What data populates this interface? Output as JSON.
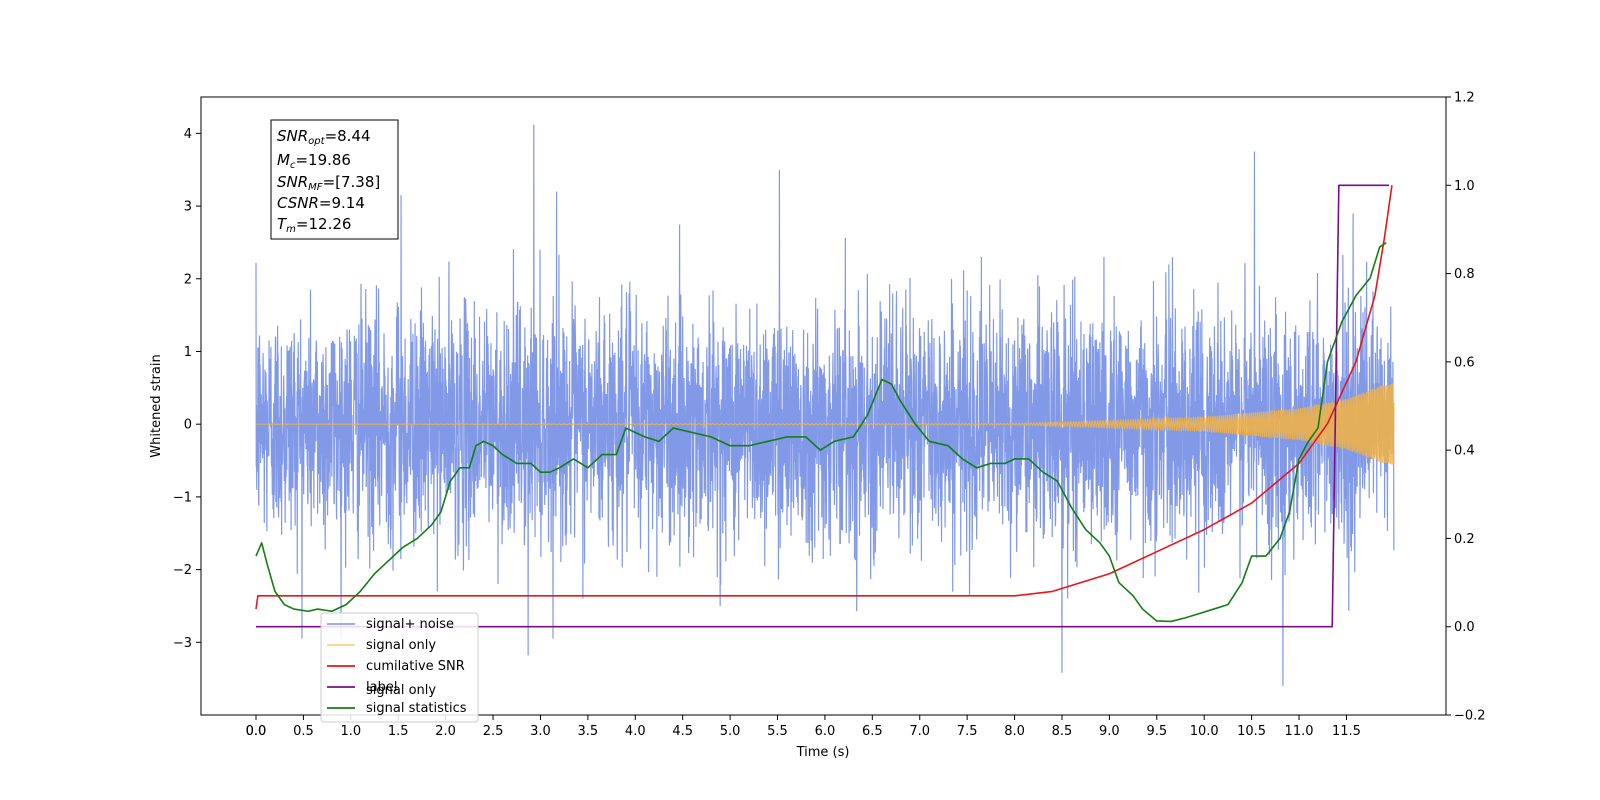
{
  "chart_data": {
    "type": "line",
    "xlabel": "Time (s)",
    "ylabel": "Whitened strain",
    "xlim": [
      -0.58,
      12.55
    ],
    "ylim_left": [
      -4.0,
      4.5
    ],
    "ylim_right": [
      -0.2,
      1.2
    ],
    "x_ticks": [
      "0.0",
      "0.0",
      "0.5",
      "1.0",
      "1.5",
      "2.0",
      "2.5",
      "3.0",
      "3.5",
      "4.0",
      "4.5",
      "5.0",
      "5.5",
      "6.0",
      "6.5",
      "7.0",
      "7.5",
      "8.0",
      "8.5",
      "9.0",
      "9.5",
      "10.0",
      "10.5",
      "11.0",
      "11.5"
    ],
    "x_tick_values": [
      0.0,
      0.0,
      0.5,
      1.0,
      1.5,
      2.0,
      2.5,
      3.0,
      3.5,
      4.0,
      4.5,
      5.0,
      5.5,
      6.0,
      6.5,
      7.0,
      7.5,
      8.0,
      8.5,
      9.0,
      9.5,
      10.0,
      10.5,
      11.0,
      11.5
    ],
    "y_ticks_left": [
      "4",
      "3",
      "2",
      "1",
      "0",
      "−1",
      "−2",
      "−3"
    ],
    "y_tick_values_left": [
      4,
      3,
      2,
      1,
      0,
      -1,
      -2,
      -3
    ],
    "y_ticks_right": [
      "1.2",
      "1.0",
      "0.8",
      "0.6",
      "0.4",
      "0.2",
      "0.0",
      "−0.2"
    ],
    "y_tick_values_right": [
      1.2,
      1.0,
      0.8,
      0.6,
      0.4,
      0.2,
      0.0,
      -0.2
    ],
    "grid": false,
    "legend_position": "lower-left",
    "annotation": [
      {
        "base": "SNR",
        "sub": "opt",
        "rest": "=8.44"
      },
      {
        "base": "M",
        "sub": "c",
        "rest": "=19.86"
      },
      {
        "base": "SNR",
        "sub": "MF",
        "rest": "=[7.38]"
      },
      {
        "base": "CSNR",
        "sub": "",
        "rest": "=9.14"
      },
      {
        "base": "T",
        "sub": "m",
        "rest": "=12.26"
      }
    ],
    "series": [
      {
        "name": "signal+ noise",
        "axis": "left",
        "color": "#7a93e6",
        "x_range": [
          0.0,
          12.0
        ],
        "noise_sigma": 0.8,
        "spikes": [
          [
            2.93,
            4.12
          ],
          [
            3.17,
            3.2
          ],
          [
            10.53,
            3.75
          ],
          [
            5.52,
            3.5
          ],
          [
            1.53,
            3.15
          ],
          [
            8.5,
            -3.42
          ],
          [
            10.83,
            -3.6
          ],
          [
            2.87,
            -3.18
          ],
          [
            11.4,
            1.0
          ]
        ]
      },
      {
        "name": "signal only",
        "axis": "left",
        "color": "#f5b342",
        "envelope": [
          [
            0.0,
            0.0
          ],
          [
            8.0,
            0.01
          ],
          [
            9.0,
            0.05
          ],
          [
            10.0,
            0.1
          ],
          [
            11.0,
            0.22
          ],
          [
            11.5,
            0.35
          ],
          [
            12.0,
            0.6
          ]
        ]
      },
      {
        "name": "cumilative SNR",
        "axis": "right",
        "color": "#e8161a",
        "points": [
          [
            0.0,
            0.04
          ],
          [
            0.02,
            0.07
          ],
          [
            8.0,
            0.07
          ],
          [
            8.4,
            0.08
          ],
          [
            9.0,
            0.12
          ],
          [
            9.5,
            0.17
          ],
          [
            10.0,
            0.22
          ],
          [
            10.5,
            0.28
          ],
          [
            11.0,
            0.37
          ],
          [
            11.3,
            0.46
          ],
          [
            11.6,
            0.6
          ],
          [
            11.8,
            0.75
          ],
          [
            11.9,
            0.88
          ],
          [
            11.98,
            1.0
          ]
        ]
      },
      {
        "name": "label",
        "axis": "right",
        "color": "#7a0e87",
        "points": [
          [
            0.0,
            0.0
          ],
          [
            11.35,
            0.0
          ],
          [
            11.42,
            1.0
          ],
          [
            11.95,
            1.0
          ]
        ]
      },
      {
        "name": "signal statistics",
        "axis": "right",
        "color": "#147d14",
        "points": [
          [
            0.0,
            0.16
          ],
          [
            0.06,
            0.19
          ],
          [
            0.12,
            0.14
          ],
          [
            0.2,
            0.08
          ],
          [
            0.3,
            0.05
          ],
          [
            0.4,
            0.04
          ],
          [
            0.55,
            0.035
          ],
          [
            0.65,
            0.04
          ],
          [
            0.8,
            0.035
          ],
          [
            0.95,
            0.05
          ],
          [
            1.1,
            0.08
          ],
          [
            1.25,
            0.12
          ],
          [
            1.4,
            0.15
          ],
          [
            1.55,
            0.18
          ],
          [
            1.7,
            0.2
          ],
          [
            1.85,
            0.23
          ],
          [
            1.95,
            0.26
          ],
          [
            2.05,
            0.33
          ],
          [
            2.15,
            0.36
          ],
          [
            2.25,
            0.36
          ],
          [
            2.32,
            0.41
          ],
          [
            2.4,
            0.42
          ],
          [
            2.5,
            0.41
          ],
          [
            2.6,
            0.39
          ],
          [
            2.75,
            0.37
          ],
          [
            2.9,
            0.37
          ],
          [
            3.0,
            0.35
          ],
          [
            3.1,
            0.35
          ],
          [
            3.2,
            0.36
          ],
          [
            3.35,
            0.38
          ],
          [
            3.5,
            0.36
          ],
          [
            3.65,
            0.39
          ],
          [
            3.8,
            0.39
          ],
          [
            3.9,
            0.45
          ],
          [
            4.0,
            0.44
          ],
          [
            4.1,
            0.43
          ],
          [
            4.25,
            0.42
          ],
          [
            4.4,
            0.45
          ],
          [
            4.6,
            0.44
          ],
          [
            4.8,
            0.43
          ],
          [
            5.0,
            0.41
          ],
          [
            5.2,
            0.41
          ],
          [
            5.4,
            0.42
          ],
          [
            5.6,
            0.43
          ],
          [
            5.8,
            0.43
          ],
          [
            5.95,
            0.4
          ],
          [
            6.1,
            0.42
          ],
          [
            6.3,
            0.43
          ],
          [
            6.45,
            0.48
          ],
          [
            6.6,
            0.56
          ],
          [
            6.7,
            0.55
          ],
          [
            6.8,
            0.51
          ],
          [
            6.95,
            0.46
          ],
          [
            7.1,
            0.42
          ],
          [
            7.3,
            0.41
          ],
          [
            7.45,
            0.38
          ],
          [
            7.6,
            0.36
          ],
          [
            7.75,
            0.37
          ],
          [
            7.9,
            0.37
          ],
          [
            8.0,
            0.38
          ],
          [
            8.15,
            0.38
          ],
          [
            8.3,
            0.35
          ],
          [
            8.45,
            0.33
          ],
          [
            8.6,
            0.27
          ],
          [
            8.75,
            0.22
          ],
          [
            8.9,
            0.19
          ],
          [
            9.0,
            0.16
          ],
          [
            9.1,
            0.1
          ],
          [
            9.25,
            0.07
          ],
          [
            9.35,
            0.04
          ],
          [
            9.5,
            0.013
          ],
          [
            9.65,
            0.012
          ],
          [
            9.8,
            0.02
          ],
          [
            9.95,
            0.03
          ],
          [
            10.1,
            0.04
          ],
          [
            10.25,
            0.05
          ],
          [
            10.4,
            0.1
          ],
          [
            10.5,
            0.16
          ],
          [
            10.65,
            0.16
          ],
          [
            10.8,
            0.2
          ],
          [
            10.9,
            0.26
          ],
          [
            11.0,
            0.38
          ],
          [
            11.1,
            0.42
          ],
          [
            11.2,
            0.45
          ],
          [
            11.3,
            0.6
          ],
          [
            11.45,
            0.69
          ],
          [
            11.6,
            0.75
          ],
          [
            11.75,
            0.79
          ],
          [
            11.85,
            0.86
          ],
          [
            11.92,
            0.87
          ]
        ]
      }
    ],
    "legend_overlap_text": "signal only"
  }
}
